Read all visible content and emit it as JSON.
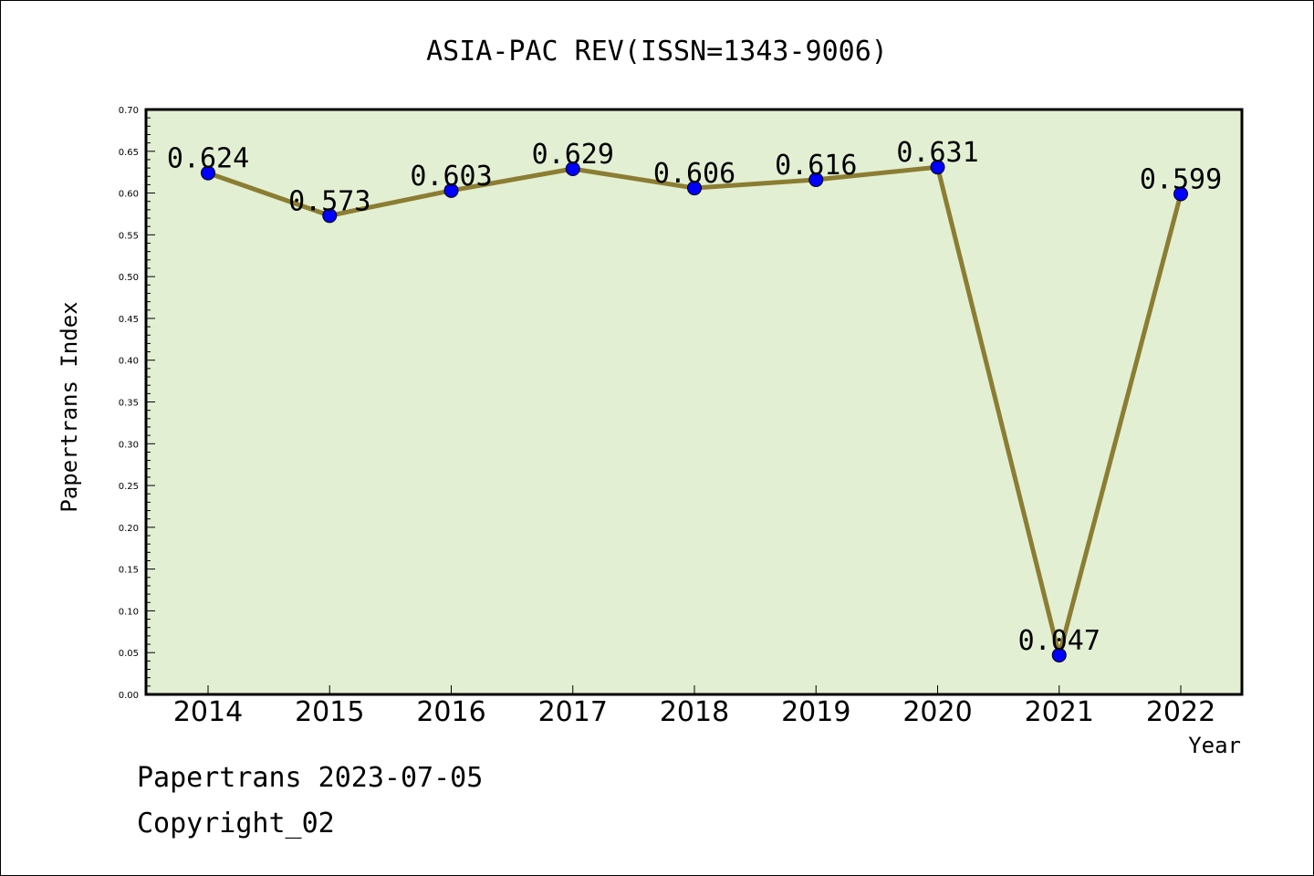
{
  "chart_data": {
    "type": "line",
    "title": "ASIA-PAC REV(ISSN=1343-9006)",
    "xlabel": "Year",
    "ylabel": "Papertrans Index",
    "categories": [
      "2014",
      "2015",
      "2016",
      "2017",
      "2018",
      "2019",
      "2020",
      "2021",
      "2022"
    ],
    "series": [
      {
        "values": [
          0.624,
          0.573,
          0.603,
          0.629,
          0.606,
          0.616,
          0.631,
          0.047,
          0.599
        ],
        "labels": [
          "0.624",
          "0.573",
          "0.603",
          "0.629",
          "0.606",
          "0.616",
          "0.631",
          "0.047",
          "0.599"
        ]
      }
    ],
    "ylim": [
      0.0,
      0.7
    ],
    "yticks": [
      "0.00",
      "0.05",
      "0.10",
      "0.15",
      "0.20",
      "0.25",
      "0.30",
      "0.35",
      "0.40",
      "0.45",
      "0.50",
      "0.55",
      "0.60",
      "0.65",
      "0.70"
    ],
    "grid": false,
    "colors": {
      "plot_background": "#e2efd3",
      "line": "#8b7d32",
      "marker": "#0000ff"
    }
  },
  "footer": {
    "line1": "Papertrans 2023-07-05",
    "line2": "Copyright_02"
  }
}
